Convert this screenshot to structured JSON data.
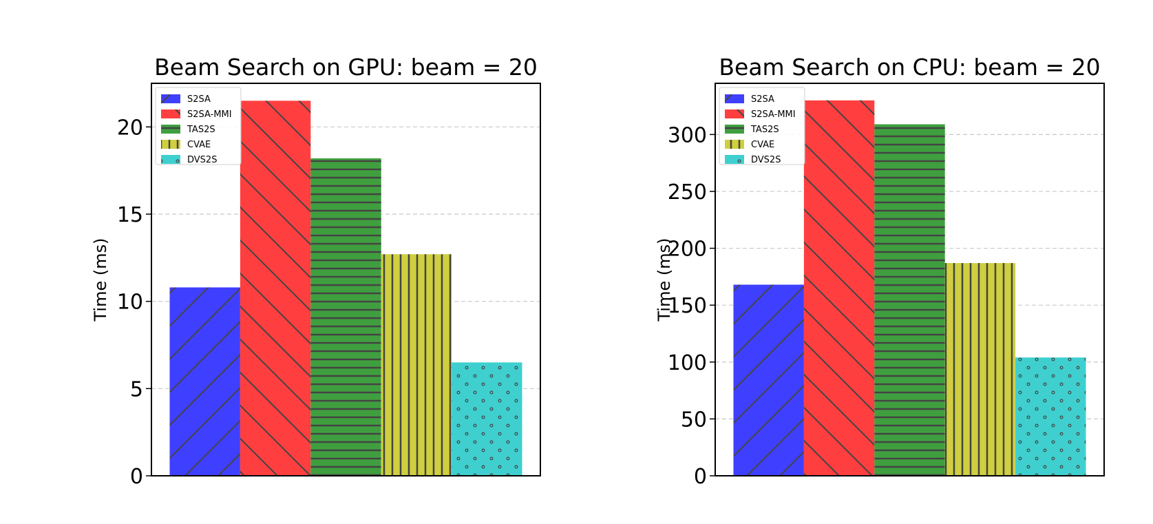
{
  "chart_data": [
    {
      "type": "bar",
      "title": "Beam Search on GPU: beam = 20",
      "xlabel": "",
      "ylabel": "Time (ms)",
      "ylim": [
        0,
        22.5
      ],
      "yticks": [
        0,
        5,
        10,
        15,
        20
      ],
      "grid": "y-dashed",
      "legend": "top-left",
      "series": [
        {
          "name": "S2SA",
          "value": 10.8,
          "color": "#3f3fff",
          "hatch": "forward-diagonal"
        },
        {
          "name": "S2SA-MMI",
          "value": 21.5,
          "color": "#ff3f3f",
          "hatch": "back-diagonal"
        },
        {
          "name": "TAS2S",
          "value": 18.2,
          "color": "#3f9f3f",
          "hatch": "horizontal"
        },
        {
          "name": "CVAE",
          "value": 12.7,
          "color": "#cfcf3f",
          "hatch": "vertical"
        },
        {
          "name": "DVS2S",
          "value": 6.5,
          "color": "#3fcfcf",
          "hatch": "dots"
        }
      ]
    },
    {
      "type": "bar",
      "title": "Beam Search on CPU: beam = 20",
      "xlabel": "",
      "ylabel": "Time (ms)",
      "ylim": [
        0,
        345
      ],
      "yticks": [
        0,
        50,
        100,
        150,
        200,
        250,
        300
      ],
      "grid": "y-dashed",
      "legend": "top-left",
      "series": [
        {
          "name": "S2SA",
          "value": 168,
          "color": "#3f3fff",
          "hatch": "forward-diagonal"
        },
        {
          "name": "S2SA-MMI",
          "value": 330,
          "color": "#ff3f3f",
          "hatch": "back-diagonal"
        },
        {
          "name": "TAS2S",
          "value": 309,
          "color": "#3f9f3f",
          "hatch": "horizontal"
        },
        {
          "name": "CVAE",
          "value": 187,
          "color": "#cfcf3f",
          "hatch": "vertical"
        },
        {
          "name": "DVS2S",
          "value": 104,
          "color": "#3fcfcf",
          "hatch": "dots"
        }
      ]
    }
  ]
}
